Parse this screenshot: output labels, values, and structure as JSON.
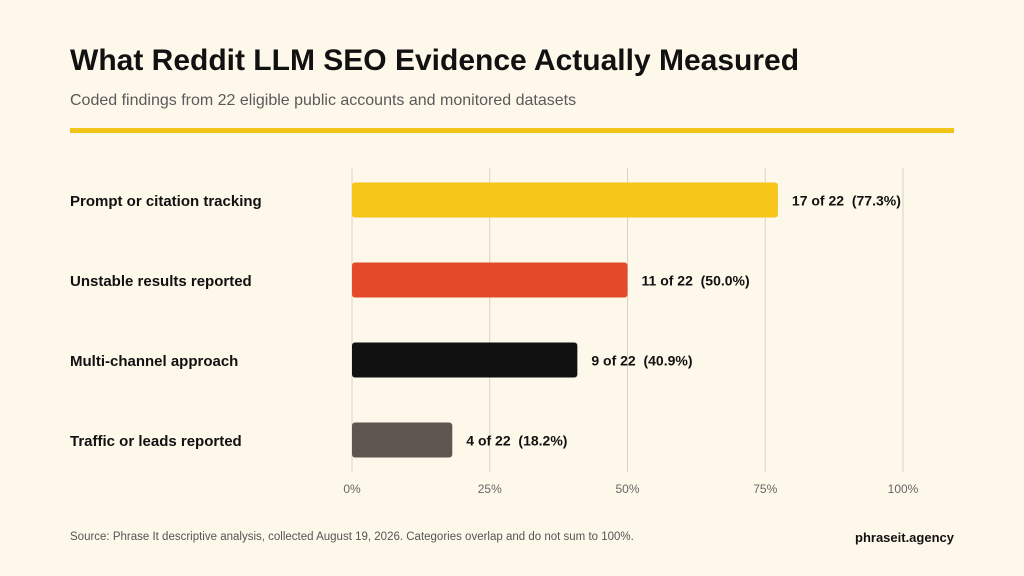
{
  "header": {
    "title": "What Reddit LLM SEO Evidence Actually Measured",
    "subtitle": "Coded findings from 22 eligible public accounts and monitored datasets"
  },
  "footer": {
    "source": "Source: Phrase It descriptive analysis, collected August 19, 2026. Categories overlap and do not sum to 100%.",
    "brand": "phraseit.agency"
  },
  "colors": {
    "background": "#fdf8ea",
    "accent_rule": "#f2c41a",
    "gridline": "#d9d3c4",
    "tick_text": "#666666",
    "label_text": "#111111"
  },
  "chart_data": {
    "type": "bar",
    "orientation": "horizontal",
    "categories": [
      "Prompt or citation tracking",
      "Unstable results reported",
      "Multi-channel approach",
      "Traffic or leads reported"
    ],
    "values": [
      77.3,
      50.0,
      40.9,
      18.2
    ],
    "data_labels": [
      "17 of 22  (77.3%)",
      "11 of 22  (50.0%)",
      "9 of 22  (40.9%)",
      "4 of 22  (18.2%)"
    ],
    "bar_colors": [
      "#f5c518",
      "#e34a29",
      "#111111",
      "#5d5750"
    ],
    "x_ticks": [
      0,
      25,
      50,
      75,
      100
    ],
    "x_tick_labels": [
      "0%",
      "25%",
      "50%",
      "75%",
      "100%"
    ],
    "xlim": [
      0,
      100
    ],
    "grid": true,
    "legend": "none"
  }
}
